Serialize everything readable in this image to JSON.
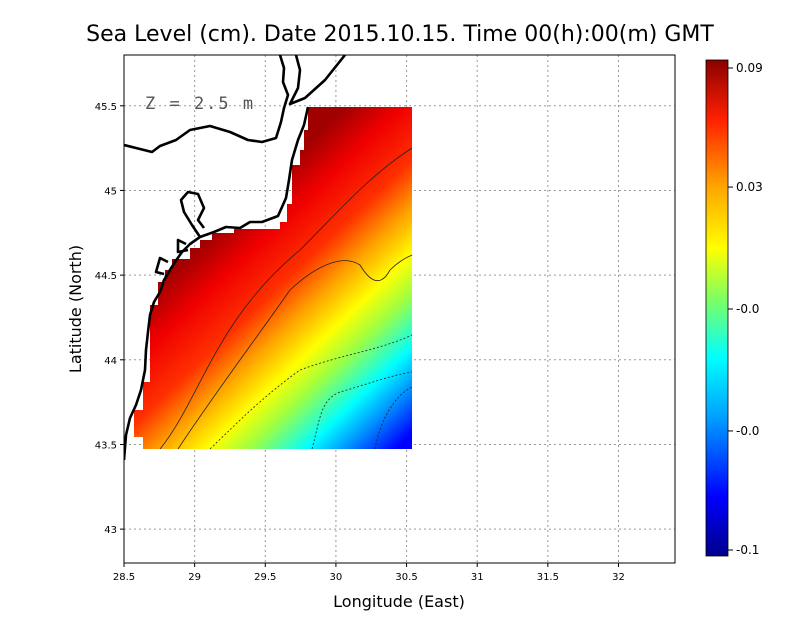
{
  "chart_data": {
    "type": "heatmap",
    "title": "Sea Level (cm). Date 2015.10.15. Time 00(h):00(m) GMT",
    "xlabel": "Longitude (East)",
    "ylabel": "Latitude (North)",
    "annotation": "Z = 2.5 m",
    "xlim": [
      28.5,
      32.4
    ],
    "ylim": [
      42.8,
      45.8
    ],
    "xticks": [
      "28.5",
      "29",
      "29.5",
      "30",
      "30.5",
      "31",
      "31.5",
      "32"
    ],
    "yticks": [
      "43",
      "43.5",
      "44",
      "44.5",
      "45",
      "45.5"
    ],
    "grid": true,
    "colormap": [
      "#00008b",
      "#0000ff",
      "#00a0ff",
      "#00ffff",
      "#80ff60",
      "#ffff00",
      "#ffa000",
      "#ff2000",
      "#8b0000"
    ],
    "colorbar": {
      "ticks": [
        "0.09",
        "0.03",
        "-0.0",
        "-0.0",
        "-0.1"
      ],
      "range": [
        -0.1,
        0.09
      ]
    },
    "field_domain": {
      "lon": [
        28.6,
        30.5
      ],
      "lat": [
        43.5,
        45.5
      ]
    }
  }
}
